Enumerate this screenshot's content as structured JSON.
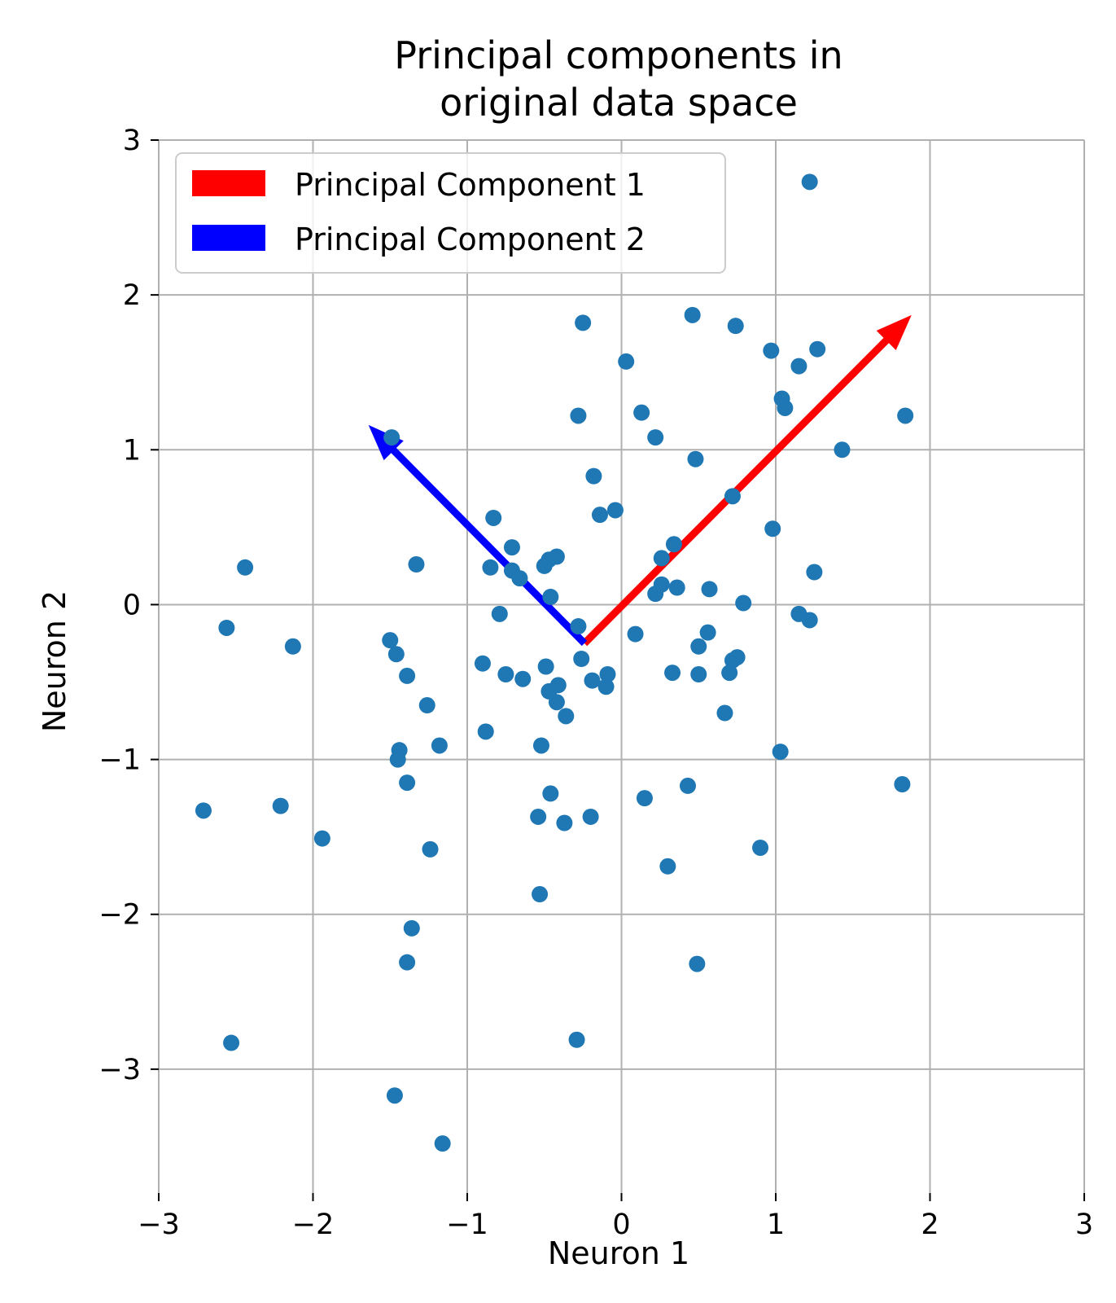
{
  "chart_data": {
    "type": "scatter",
    "title_line1": "Principal components in",
    "title_line2": "original data space",
    "xlabel": "Neuron 1",
    "ylabel": "Neuron 2",
    "xlim": [
      -3,
      3
    ],
    "ylim": [
      -3.8,
      3
    ],
    "xticks": [
      -3,
      -2,
      -1,
      0,
      1,
      2,
      3
    ],
    "xtick_labels": [
      "−3",
      "−2",
      "−1",
      "0",
      "1",
      "2",
      "3"
    ],
    "yticks": [
      -3,
      -2,
      -1,
      0,
      1,
      2,
      3
    ],
    "ytick_labels": [
      "−3",
      "−2",
      "−1",
      "0",
      "1",
      "2",
      "3"
    ],
    "grid": true,
    "legend_position": "upper-left",
    "point_color": "#1f77b4",
    "points": [
      [
        1.22,
        2.73
      ],
      [
        -0.25,
        1.82
      ],
      [
        0.46,
        1.87
      ],
      [
        0.74,
        1.8
      ],
      [
        0.97,
        1.64
      ],
      [
        1.27,
        1.65
      ],
      [
        0.03,
        1.57
      ],
      [
        1.15,
        1.54
      ],
      [
        1.04,
        1.33
      ],
      [
        1.06,
        1.27
      ],
      [
        0.13,
        1.24
      ],
      [
        -0.28,
        1.22
      ],
      [
        1.84,
        1.22
      ],
      [
        -1.49,
        1.08
      ],
      [
        0.22,
        1.08
      ],
      [
        1.43,
        1.0
      ],
      [
        0.48,
        0.94
      ],
      [
        -0.18,
        0.83
      ],
      [
        0.72,
        0.7
      ],
      [
        -0.04,
        0.61
      ],
      [
        -0.14,
        0.58
      ],
      [
        -0.83,
        0.56
      ],
      [
        0.98,
        0.49
      ],
      [
        0.34,
        0.39
      ],
      [
        -0.71,
        0.37
      ],
      [
        -0.42,
        0.31
      ],
      [
        -0.47,
        0.29
      ],
      [
        0.26,
        0.3
      ],
      [
        -2.44,
        0.24
      ],
      [
        -1.33,
        0.26
      ],
      [
        -0.85,
        0.24
      ],
      [
        -0.5,
        0.25
      ],
      [
        -0.71,
        0.22
      ],
      [
        -0.66,
        0.17
      ],
      [
        1.25,
        0.21
      ],
      [
        0.26,
        0.13
      ],
      [
        0.36,
        0.11
      ],
      [
        0.57,
        0.1
      ],
      [
        0.22,
        0.07
      ],
      [
        -0.46,
        0.05
      ],
      [
        0.79,
        0.01
      ],
      [
        -0.79,
        -0.06
      ],
      [
        1.15,
        -0.06
      ],
      [
        1.22,
        -0.1
      ],
      [
        -2.56,
        -0.15
      ],
      [
        -0.28,
        -0.14
      ],
      [
        0.09,
        -0.19
      ],
      [
        0.56,
        -0.18
      ],
      [
        -1.5,
        -0.23
      ],
      [
        -2.13,
        -0.27
      ],
      [
        0.5,
        -0.27
      ],
      [
        -1.46,
        -0.32
      ],
      [
        -0.26,
        -0.35
      ],
      [
        0.72,
        -0.36
      ],
      [
        0.75,
        -0.34
      ],
      [
        -0.9,
        -0.38
      ],
      [
        -0.49,
        -0.4
      ],
      [
        -1.39,
        -0.46
      ],
      [
        -0.75,
        -0.45
      ],
      [
        -0.64,
        -0.48
      ],
      [
        0.33,
        -0.44
      ],
      [
        0.5,
        -0.45
      ],
      [
        0.7,
        -0.44
      ],
      [
        -0.09,
        -0.45
      ],
      [
        -0.19,
        -0.49
      ],
      [
        -0.1,
        -0.53
      ],
      [
        -0.41,
        -0.52
      ],
      [
        -0.47,
        -0.56
      ],
      [
        -0.42,
        -0.63
      ],
      [
        -1.26,
        -0.65
      ],
      [
        -0.36,
        -0.72
      ],
      [
        0.67,
        -0.7
      ],
      [
        -0.88,
        -0.82
      ],
      [
        -1.44,
        -0.94
      ],
      [
        -1.45,
        -1.0
      ],
      [
        -1.18,
        -0.91
      ],
      [
        -0.52,
        -0.91
      ],
      [
        1.03,
        -0.95
      ],
      [
        -1.39,
        -1.15
      ],
      [
        0.43,
        -1.17
      ],
      [
        1.82,
        -1.16
      ],
      [
        -0.46,
        -1.22
      ],
      [
        0.15,
        -1.25
      ],
      [
        -2.71,
        -1.33
      ],
      [
        -2.21,
        -1.3
      ],
      [
        -0.54,
        -1.37
      ],
      [
        -0.37,
        -1.41
      ],
      [
        -0.2,
        -1.37
      ],
      [
        -1.94,
        -1.51
      ],
      [
        -1.24,
        -1.58
      ],
      [
        0.9,
        -1.57
      ],
      [
        0.3,
        -1.69
      ],
      [
        -0.53,
        -1.87
      ],
      [
        -1.36,
        -2.09
      ],
      [
        -1.39,
        -2.31
      ],
      [
        0.49,
        -2.32
      ],
      [
        -2.53,
        -2.83
      ],
      [
        -0.29,
        -2.81
      ],
      [
        -1.47,
        -3.17
      ],
      [
        -1.16,
        -3.48
      ]
    ],
    "arrows": [
      {
        "name": "Principal Component 1",
        "color": "#ff0000",
        "from": [
          -0.24,
          -0.25
        ],
        "to": [
          1.88,
          1.87
        ]
      },
      {
        "name": "Principal Component 2",
        "color": "#0000ff",
        "from": [
          -0.24,
          -0.25
        ],
        "to": [
          -1.64,
          1.16
        ]
      }
    ]
  }
}
